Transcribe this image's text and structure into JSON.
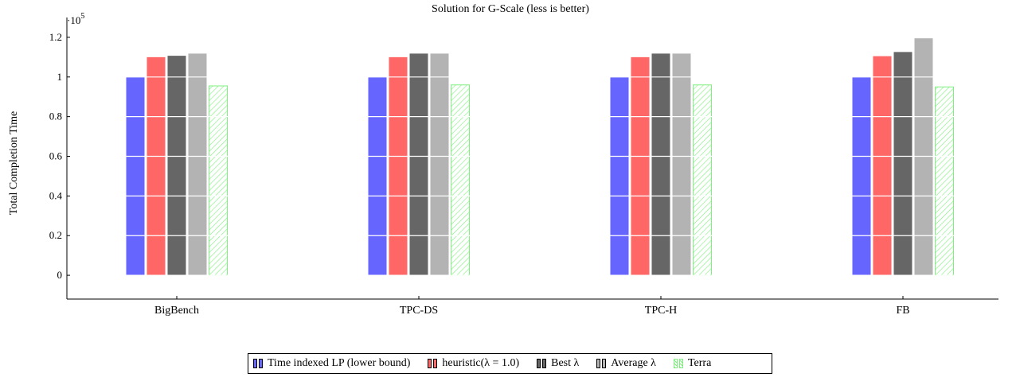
{
  "colors": {
    "time_indexed_lp": "#6666ff",
    "heuristic": "#ff6666",
    "best_lambda": "#666666",
    "average_lambda": "#b3b3b3",
    "terra": "#7ef07e",
    "axis": "#000000"
  },
  "chart_data": {
    "type": "bar",
    "title": "Solution for G-Scale (less is better)",
    "ylabel": "Total Completion Time",
    "xlabel": "",
    "y_scale_label_base": "·10",
    "y_scale_label_exp": "5",
    "y_multiplier": 100000,
    "ylim": [
      -0.12,
      1.3
    ],
    "yticks": [
      0,
      0.2,
      0.4,
      0.6,
      0.8,
      1,
      1.2
    ],
    "ytick_labels": [
      "0",
      "0.2",
      "0.4",
      "0.6",
      "0.8",
      "1",
      "1.2"
    ],
    "grid": "horizontal white lines over bars",
    "legend_position": "bottom-center",
    "categories": [
      "BigBench",
      "TPC-DS",
      "TPC-H",
      "FB"
    ],
    "series": [
      {
        "name": "Time indexed LP (lower bound)",
        "legend_label": "Time indexed LP (lower bound)",
        "color_key": "time_indexed_lp",
        "hatch": false,
        "values": [
          1.0,
          1.0,
          1.0,
          1.0
        ]
      },
      {
        "name": "heuristic(λ = 1.0)",
        "legend_label": "heuristic(λ = 1.0)",
        "color_key": "heuristic",
        "hatch": false,
        "values": [
          1.1,
          1.1,
          1.1,
          1.105
        ]
      },
      {
        "name": "Best λ",
        "legend_label": "Best λ",
        "color_key": "best_lambda",
        "hatch": false,
        "values": [
          1.107,
          1.118,
          1.118,
          1.126
        ]
      },
      {
        "name": "Average λ",
        "legend_label": "Average λ",
        "color_key": "average_lambda",
        "hatch": false,
        "values": [
          1.118,
          1.118,
          1.118,
          1.195
        ]
      },
      {
        "name": "Terra",
        "legend_label": "Terra",
        "color_key": "terra",
        "hatch": true,
        "values": [
          0.955,
          0.96,
          0.96,
          0.95
        ]
      }
    ]
  }
}
